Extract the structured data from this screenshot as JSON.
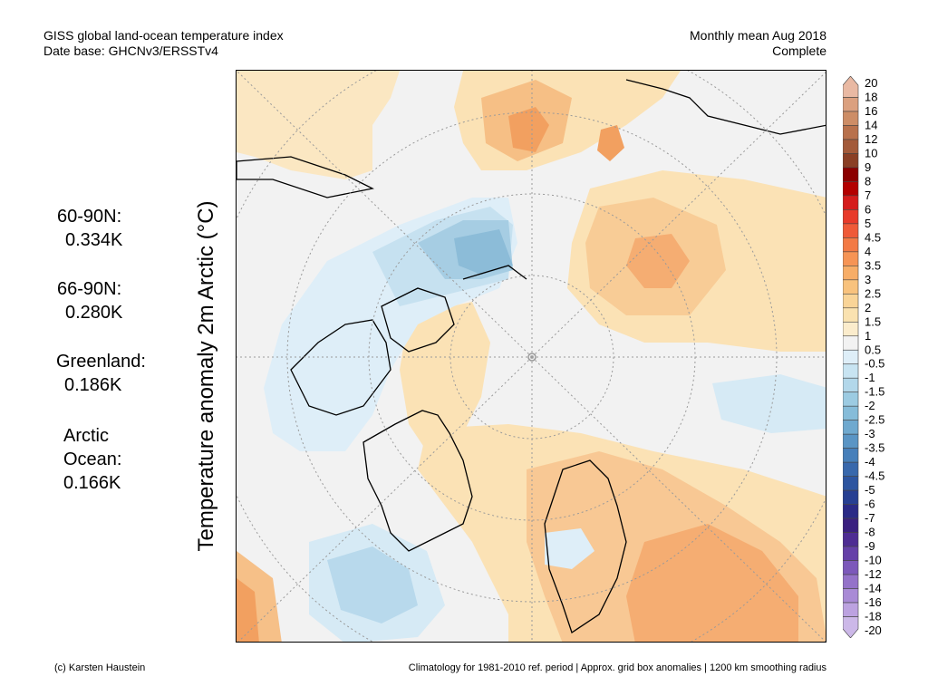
{
  "header": {
    "line1_left": "GISS global land-ocean temperature index",
    "line2_left": "Date base: GHCNv3/ERSSTv4",
    "line1_right": "Monthly mean Aug 2018",
    "line2_right": "Complete"
  },
  "axis_label": "Temperature anomaly 2m Arctic (°C)",
  "stats": [
    {
      "region": "60-90N:",
      "value": "0.334K"
    },
    {
      "region": "66-90N:",
      "value": "0.280K"
    },
    {
      "region": "Greenland:",
      "value": "0.186K"
    },
    {
      "region": "Arctic Ocean:",
      "region_lines": [
        "Arctic",
        "Ocean:"
      ],
      "value": "0.166K"
    }
  ],
  "colorbar": {
    "labels": [
      "20",
      "18",
      "16",
      "14",
      "12",
      "10",
      "9",
      "8",
      "7",
      "6",
      "5",
      "4.5",
      "4",
      "3.5",
      "3",
      "2.5",
      "2",
      "1.5",
      "1",
      "0.5",
      "-0.5",
      "-1",
      "-1.5",
      "-2",
      "-2.5",
      "-3",
      "-3.5",
      "-4",
      "-4.5",
      "-5",
      "-6",
      "-7",
      "-8",
      "-9",
      "-10",
      "-12",
      "-14",
      "-16",
      "-18",
      "-20"
    ],
    "colors": [
      "#e9b9a3",
      "#dba07f",
      "#cd8d66",
      "#b8714c",
      "#a35a3a",
      "#8a3f25",
      "#8b0000",
      "#b30000",
      "#d51c1c",
      "#e83a2a",
      "#ef5a38",
      "#f37a45",
      "#f69455",
      "#f7ad67",
      "#f8c27d",
      "#f9d497",
      "#fae2b0",
      "#fbeccc",
      "#f2f2f2",
      "#deeef8",
      "#c8e4f2",
      "#b2d7ea",
      "#9ccbe2",
      "#86bcd9",
      "#6fa9cf",
      "#5a95c5",
      "#467fba",
      "#3868ac",
      "#2d55a0",
      "#263f92",
      "#2a2a86",
      "#3a2080",
      "#4e2c93",
      "#6540a8",
      "#7c58ba",
      "#9472c9",
      "#a98ad6",
      "#bca2e0",
      "#ccb8e8"
    ]
  },
  "footer": {
    "left": "(c) Karsten Haustein",
    "right": "Climatology for 1981-2010 ref. period | Approx. grid box anomalies | 1200 km smoothing radius"
  }
}
